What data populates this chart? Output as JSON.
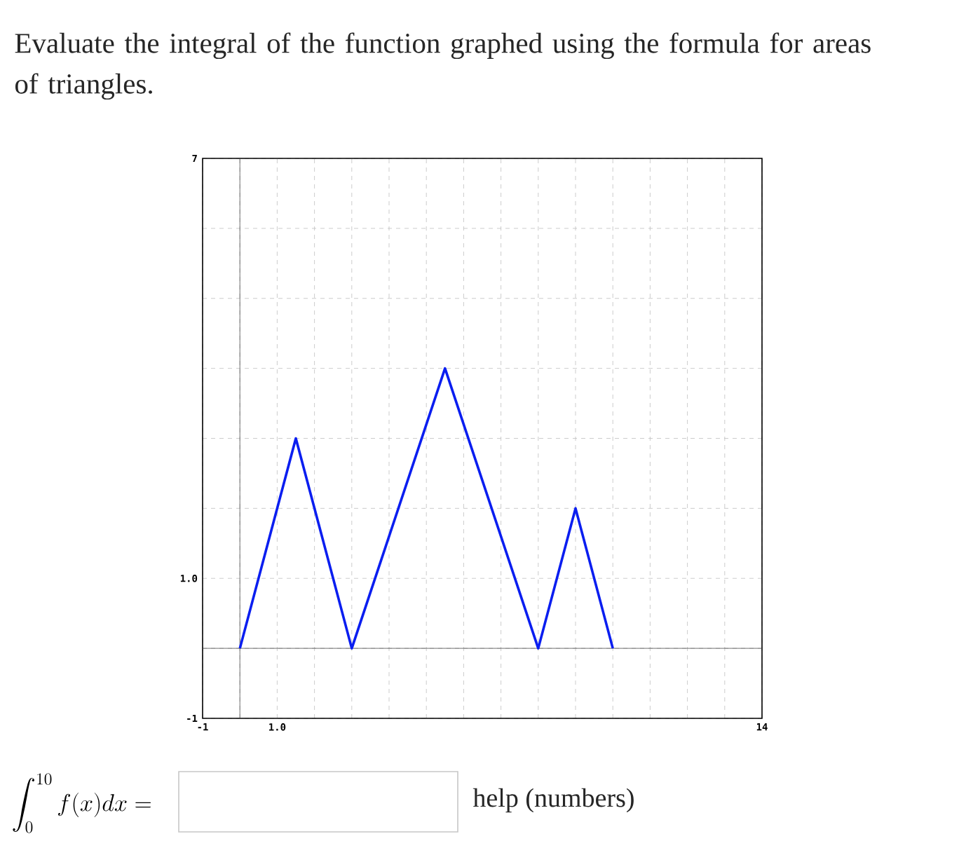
{
  "chart_data": {
    "type": "line",
    "title": "Evaluate the integral of the function graphed using the formula for areas of triangles.",
    "x": [
      0,
      1.5,
      3,
      5.5,
      8,
      9,
      10
    ],
    "values": [
      0,
      3,
      0,
      4,
      0,
      2,
      0
    ],
    "color": "#0a1ef0",
    "xlim": [
      -1,
      14
    ],
    "ylim": [
      -1,
      7
    ],
    "xticks": [
      -1,
      {
        "value": 0,
        "label": null
      },
      {
        "value": 1,
        "label": "1.0"
      },
      {
        "value": 2,
        "label": null
      },
      {
        "value": 3,
        "label": null
      },
      {
        "value": 4,
        "label": null
      },
      {
        "value": 5,
        "label": null
      },
      {
        "value": 6,
        "label": null
      },
      {
        "value": 7,
        "label": null
      },
      {
        "value": 8,
        "label": null
      },
      {
        "value": 9,
        "label": null
      },
      {
        "value": 10,
        "label": null
      },
      {
        "value": 11,
        "label": null
      },
      {
        "value": 12,
        "label": null
      },
      {
        "value": 13,
        "label": null
      },
      14
    ],
    "yticks": [
      -1,
      {
        "value": 0,
        "label": null
      },
      {
        "value": 1,
        "label": "1.0"
      },
      {
        "value": 2,
        "label": null
      },
      {
        "value": 3,
        "label": null
      },
      {
        "value": 4,
        "label": null
      },
      {
        "value": 5,
        "label": null
      },
      {
        "value": 6,
        "label": null
      },
      7
    ],
    "grid": true,
    "annotations": [
      "\\int_0^{10} f(x)dx =",
      "help (numbers)"
    ]
  }
}
